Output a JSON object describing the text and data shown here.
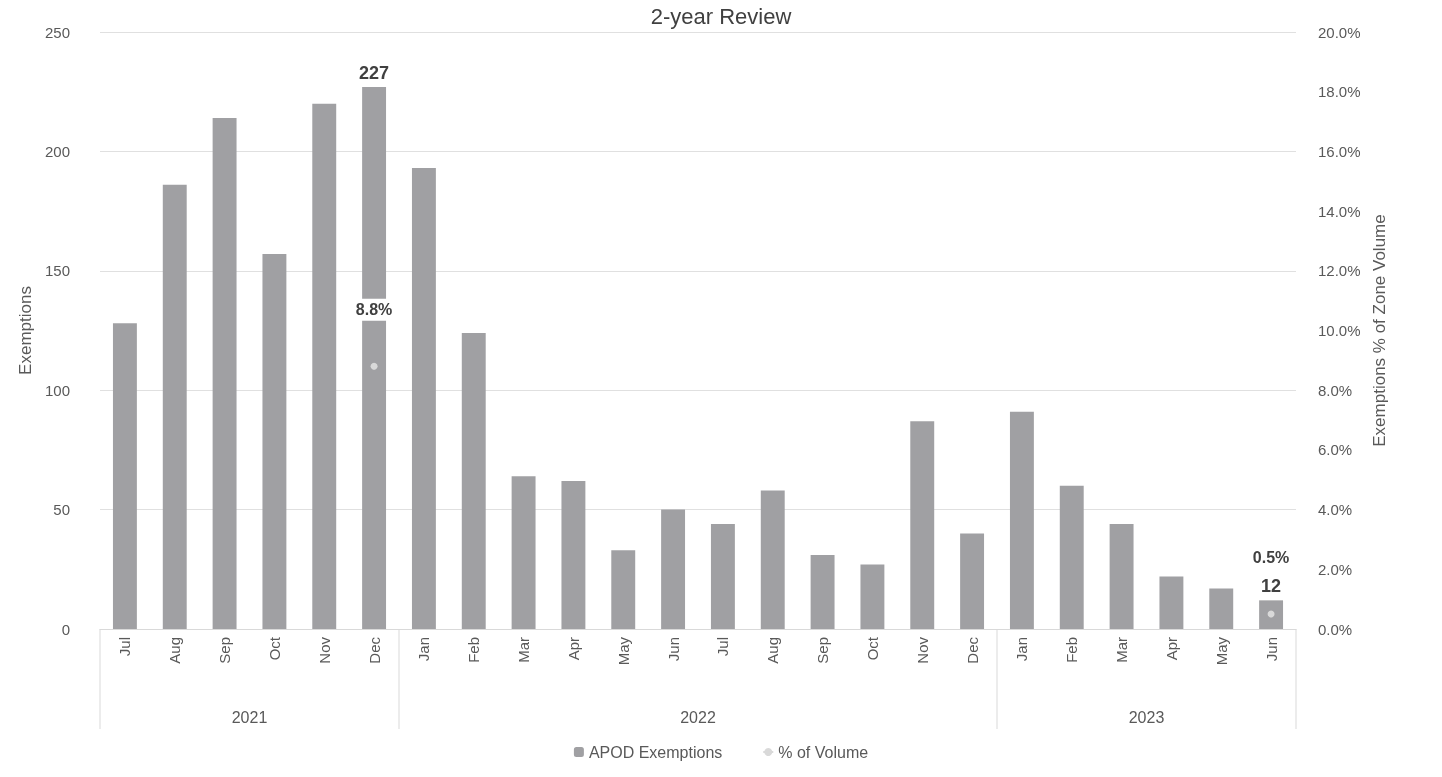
{
  "chart_data": {
    "type": "bar",
    "title": "2-year Review",
    "ylabel": "Exemptions",
    "y2label": "Exemptions % of Zone Volume",
    "categories": [
      "Jul",
      "Aug",
      "Sep",
      "Oct",
      "Nov",
      "Dec",
      "Jan",
      "Feb",
      "Mar",
      "Apr",
      "May",
      "Jun",
      "Jul",
      "Aug",
      "Sep",
      "Oct",
      "Nov",
      "Dec",
      "Jan",
      "Feb",
      "Mar",
      "Apr",
      "May",
      "Jun"
    ],
    "series": [
      {
        "name": "APOD Exemptions",
        "color": "#a0a0a3",
        "values": [
          128,
          186,
          214,
          157,
          220,
          227,
          193,
          124,
          64,
          62,
          33,
          50,
          44,
          58,
          31,
          27,
          87,
          40,
          91,
          60,
          44,
          22,
          17,
          12
        ],
        "value_labels": [
          null,
          null,
          null,
          null,
          null,
          "227",
          null,
          null,
          null,
          null,
          null,
          null,
          null,
          null,
          null,
          null,
          null,
          null,
          null,
          null,
          null,
          null,
          null,
          "12"
        ]
      },
      {
        "name": "% of Volume",
        "type": "line",
        "axis": "y2",
        "color": "#d9d9d9",
        "marker": "circle",
        "values": [
          null,
          null,
          null,
          null,
          null,
          8.8,
          null,
          null,
          null,
          null,
          null,
          null,
          null,
          null,
          null,
          null,
          null,
          null,
          null,
          null,
          null,
          null,
          null,
          0.5
        ],
        "value_labels": [
          null,
          null,
          null,
          null,
          null,
          "8.8%",
          null,
          null,
          null,
          null,
          null,
          null,
          null,
          null,
          null,
          null,
          null,
          null,
          null,
          null,
          null,
          null,
          null,
          "0.5%"
        ]
      }
    ],
    "ylim": [
      0,
      250
    ],
    "yticks": [
      0,
      50,
      100,
      150,
      200,
      250
    ],
    "y2lim": [
      0,
      20
    ],
    "y2ticks": [
      {
        "value": 0,
        "label": "0.0%"
      },
      {
        "value": 2,
        "label": "2.0%"
      },
      {
        "value": 4,
        "label": "4.0%"
      },
      {
        "value": 6,
        "label": "6.0%"
      },
      {
        "value": 8,
        "label": "8.0%"
      },
      {
        "value": 10,
        "label": "10.0%"
      },
      {
        "value": 12,
        "label": "12.0%"
      },
      {
        "value": 14,
        "label": "14.0%"
      },
      {
        "value": 16,
        "label": "16.0%"
      },
      {
        "value": 18,
        "label": "18.0%"
      },
      {
        "value": 20,
        "label": "20.0%"
      }
    ],
    "annotations": [
      "2021",
      "2022",
      "2023"
    ],
    "grid": "y",
    "legend": "bottom"
  }
}
